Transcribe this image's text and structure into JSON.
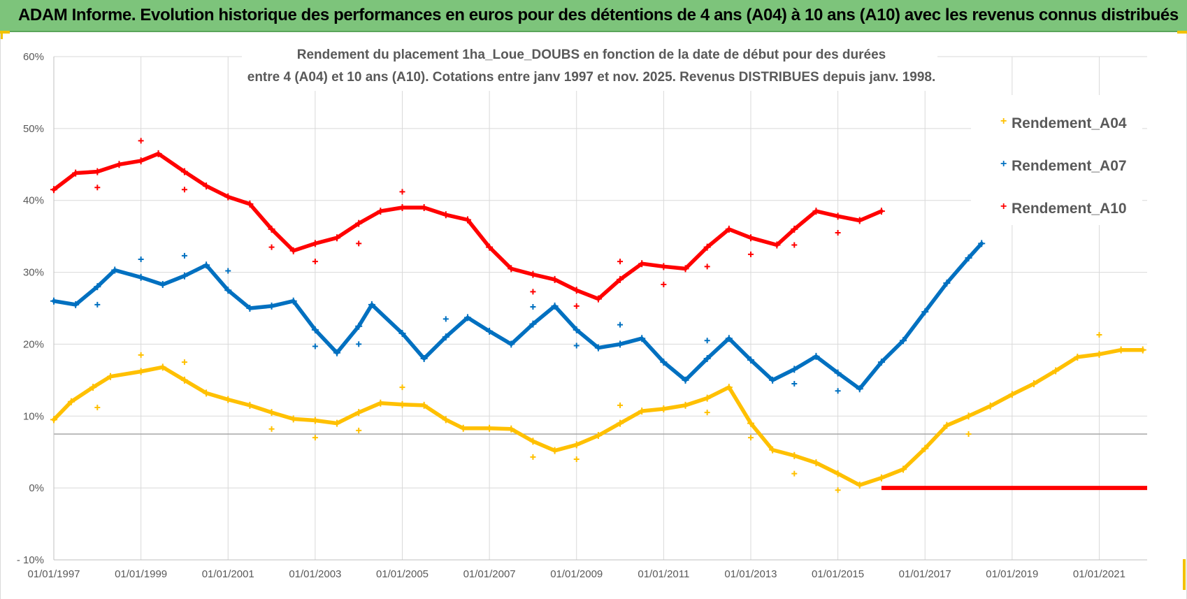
{
  "banner": {
    "text": "ADAM Informe. Evolution historique des performances en euros pour des détentions de 4 ans (A04) à 10 ans (A10) avec les revenus connus distribués"
  },
  "colors": {
    "banner_bg": "#7dc47b",
    "a04": "#ffc000",
    "a07": "#0070c0",
    "a10": "#ff0000",
    "grid": "#d9d9d9",
    "text": "#595959"
  },
  "chart_data": {
    "type": "scatter",
    "title_lines": [
      "Rendement du placement 1ha_Loue_DOUBS en fonction de la date de début pour des durées",
      "entre 4 (A04) et 10 ans (A10).  Cotations entre janv 1997 et nov. 2025. Revenus DISTRIBUES depuis janv. 1998."
    ],
    "xlabel": "",
    "ylabel": "",
    "xlim": [
      1997.0,
      2022.1
    ],
    "ylim": [
      -10,
      60
    ],
    "x_tick_labels": [
      "01/01/1997",
      "01/01/1999",
      "01/01/2001",
      "01/01/2003",
      "01/01/2005",
      "01/01/2007",
      "01/01/2009",
      "01/01/2011",
      "01/01/2013",
      "01/01/2015",
      "01/01/2017",
      "01/01/2019",
      "01/01/2021"
    ],
    "x_tick_values": [
      1997,
      1999,
      2001,
      2003,
      2005,
      2007,
      2009,
      2011,
      2013,
      2015,
      2017,
      2019,
      2021
    ],
    "y_tick_labels": [
      "- 10%",
      "0%",
      "10%",
      "20%",
      "30%",
      "40%",
      "50%",
      "60%"
    ],
    "y_tick_values": [
      -10,
      0,
      10,
      20,
      30,
      40,
      50,
      60
    ],
    "reference_line_y": 7.5,
    "legend": {
      "position": "top-right",
      "entries": [
        "Rendement_A04",
        "Rendement_A07",
        "Rendement_A10"
      ]
    },
    "series": [
      {
        "name": "Rendement_A04",
        "line": [
          [
            1997.0,
            9.5
          ],
          [
            1997.4,
            12
          ],
          [
            1997.9,
            14
          ],
          [
            1998.3,
            15.5
          ],
          [
            1999.0,
            16.2
          ],
          [
            1999.5,
            16.8
          ],
          [
            2000.0,
            15
          ],
          [
            2000.5,
            13.2
          ],
          [
            2001.0,
            12.3
          ],
          [
            2001.5,
            11.5
          ],
          [
            2002.0,
            10.5
          ],
          [
            2002.5,
            9.6
          ],
          [
            2003.0,
            9.4
          ],
          [
            2003.5,
            9
          ],
          [
            2004.0,
            10.5
          ],
          [
            2004.5,
            11.8
          ],
          [
            2005.0,
            11.6
          ],
          [
            2005.5,
            11.5
          ],
          [
            2006.0,
            9.5
          ],
          [
            2006.4,
            8.3
          ],
          [
            2007.0,
            8.3
          ],
          [
            2007.5,
            8.2
          ],
          [
            2008.0,
            6.5
          ],
          [
            2008.5,
            5.2
          ],
          [
            2009.0,
            6
          ],
          [
            2009.5,
            7.3
          ],
          [
            2010.0,
            9
          ],
          [
            2010.5,
            10.7
          ],
          [
            2011.0,
            11
          ],
          [
            2011.5,
            11.5
          ],
          [
            2012.0,
            12.5
          ],
          [
            2012.5,
            14
          ],
          [
            2013.0,
            9
          ],
          [
            2013.5,
            5.3
          ],
          [
            2014.0,
            4.5
          ],
          [
            2014.5,
            3.5
          ],
          [
            2015.0,
            2
          ],
          [
            2015.5,
            0.4
          ],
          [
            2016.0,
            1.4
          ],
          [
            2016.5,
            2.6
          ],
          [
            2017.0,
            5.5
          ],
          [
            2017.5,
            8.7
          ],
          [
            2018.0,
            10
          ],
          [
            2018.5,
            11.4
          ],
          [
            2019.0,
            13
          ],
          [
            2019.5,
            14.5
          ],
          [
            2020.0,
            16.3
          ],
          [
            2020.5,
            18.2
          ],
          [
            2021.0,
            18.6
          ],
          [
            2021.5,
            19.2
          ],
          [
            2022.0,
            19.2
          ]
        ],
        "outliers": [
          [
            1998.0,
            11.2
          ],
          [
            1999.0,
            18.5
          ],
          [
            2000.0,
            17.5
          ],
          [
            2002.0,
            8.2
          ],
          [
            2003.0,
            7
          ],
          [
            2004.0,
            8
          ],
          [
            2005.0,
            14
          ],
          [
            2008.0,
            4.3
          ],
          [
            2009.0,
            4
          ],
          [
            2010.0,
            11.5
          ],
          [
            2012.0,
            10.5
          ],
          [
            2013.0,
            7
          ],
          [
            2014.0,
            2
          ],
          [
            2015.0,
            -0.3
          ],
          [
            2018.0,
            7.5
          ],
          [
            2021.0,
            21.3
          ]
        ]
      },
      {
        "name": "Rendement_A07",
        "line": [
          [
            1997.0,
            26
          ],
          [
            1997.5,
            25.5
          ],
          [
            1998.0,
            28
          ],
          [
            1998.4,
            30.3
          ],
          [
            1999.0,
            29.3
          ],
          [
            1999.5,
            28.3
          ],
          [
            2000.0,
            29.5
          ],
          [
            2000.5,
            31
          ],
          [
            2001.0,
            27.5
          ],
          [
            2001.5,
            25
          ],
          [
            2002.0,
            25.3
          ],
          [
            2002.5,
            26
          ],
          [
            2003.0,
            22
          ],
          [
            2003.5,
            18.8
          ],
          [
            2004.0,
            22.5
          ],
          [
            2004.3,
            25.5
          ],
          [
            2005.0,
            21.5
          ],
          [
            2005.5,
            18
          ],
          [
            2006.0,
            21
          ],
          [
            2006.5,
            23.7
          ],
          [
            2007.0,
            21.8
          ],
          [
            2007.5,
            20
          ],
          [
            2008.0,
            22.8
          ],
          [
            2008.5,
            25.3
          ],
          [
            2009.0,
            22
          ],
          [
            2009.5,
            19.5
          ],
          [
            2010.0,
            20
          ],
          [
            2010.5,
            20.8
          ],
          [
            2011.0,
            17.5
          ],
          [
            2011.5,
            15
          ],
          [
            2012.0,
            18
          ],
          [
            2012.5,
            20.8
          ],
          [
            2013.0,
            17.8
          ],
          [
            2013.5,
            15
          ],
          [
            2014.0,
            16.5
          ],
          [
            2014.5,
            18.3
          ],
          [
            2015.0,
            16
          ],
          [
            2015.5,
            13.8
          ],
          [
            2016.0,
            17.5
          ],
          [
            2016.5,
            20.5
          ],
          [
            2017.0,
            24.5
          ],
          [
            2017.5,
            28.5
          ],
          [
            2018.0,
            32
          ],
          [
            2018.3,
            34
          ]
        ],
        "outliers": [
          [
            1998.0,
            25.5
          ],
          [
            1999.0,
            31.8
          ],
          [
            2000.0,
            32.3
          ],
          [
            2001.0,
            30.2
          ],
          [
            2003.0,
            19.7
          ],
          [
            2004.0,
            20
          ],
          [
            2006.0,
            23.5
          ],
          [
            2008.0,
            25.2
          ],
          [
            2009.0,
            19.8
          ],
          [
            2010.0,
            22.7
          ],
          [
            2012.0,
            20.5
          ],
          [
            2014.0,
            14.5
          ],
          [
            2015.0,
            13.5
          ]
        ]
      },
      {
        "name": "Rendement_A10",
        "line": [
          [
            1997.0,
            41.5
          ],
          [
            1997.5,
            43.8
          ],
          [
            1998.0,
            44
          ],
          [
            1998.5,
            45
          ],
          [
            1999.0,
            45.5
          ],
          [
            1999.4,
            46.5
          ],
          [
            2000.0,
            44
          ],
          [
            2000.5,
            42
          ],
          [
            2001.0,
            40.5
          ],
          [
            2001.5,
            39.5
          ],
          [
            2002.0,
            36
          ],
          [
            2002.5,
            33
          ],
          [
            2003.0,
            34
          ],
          [
            2003.5,
            34.8
          ],
          [
            2004.0,
            36.8
          ],
          [
            2004.5,
            38.5
          ],
          [
            2005.0,
            39
          ],
          [
            2005.5,
            39
          ],
          [
            2006.0,
            38
          ],
          [
            2006.5,
            37.3
          ],
          [
            2007.0,
            33.5
          ],
          [
            2007.5,
            30.5
          ],
          [
            2008.0,
            29.7
          ],
          [
            2008.5,
            29
          ],
          [
            2009.0,
            27.5
          ],
          [
            2009.5,
            26.3
          ],
          [
            2010.0,
            29
          ],
          [
            2010.5,
            31.2
          ],
          [
            2011.0,
            30.8
          ],
          [
            2011.5,
            30.5
          ],
          [
            2012.0,
            33.5
          ],
          [
            2012.5,
            36
          ],
          [
            2013.0,
            34.8
          ],
          [
            2013.6,
            33.8
          ],
          [
            2014.0,
            36
          ],
          [
            2014.5,
            38.5
          ],
          [
            2015.0,
            37.8
          ],
          [
            2015.5,
            37.2
          ],
          [
            2016.0,
            38.5
          ]
        ],
        "outliers": [
          [
            1998.0,
            41.8
          ],
          [
            1999.0,
            48.3
          ],
          [
            2000.0,
            41.5
          ],
          [
            2002.0,
            33.5
          ],
          [
            2003.0,
            31.5
          ],
          [
            2004.0,
            34
          ],
          [
            2005.0,
            41.2
          ],
          [
            2008.0,
            27.3
          ],
          [
            2009.0,
            25.3
          ],
          [
            2010.0,
            31.5
          ],
          [
            2011.0,
            28.3
          ],
          [
            2012.0,
            30.8
          ],
          [
            2013.0,
            32.5
          ],
          [
            2014.0,
            33.8
          ],
          [
            2015.0,
            35.5
          ]
        ],
        "zero_segment": [
          2016.0,
          2022.1
        ]
      }
    ]
  }
}
